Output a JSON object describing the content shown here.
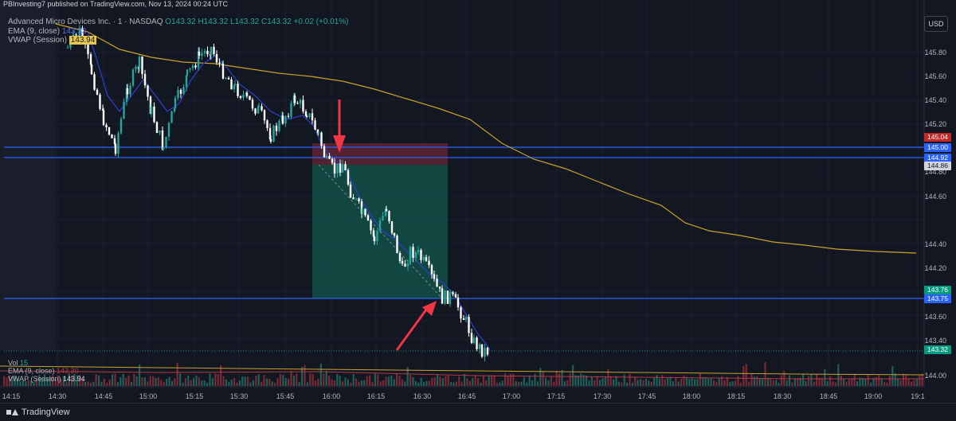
{
  "header": {
    "published": "PBInvesting7 published on TradingView.com, Nov 13, 2024 00:24 UTC"
  },
  "legend": {
    "symbol": "Advanced Micro Devices Inc. · 1 · NASDAQ",
    "o": "O143.32",
    "h": "H143.32",
    "l": "L143.32",
    "c": "C143.32",
    "chg": "+0.02 (+0.01%)",
    "ema_label": "EMA (9, close)",
    "ema_value": "143.33",
    "vwap_label": "VWAP (Session)",
    "vwap_value": "143.94"
  },
  "vol_legend": {
    "vol_label": "Vol",
    "vol_value": "15",
    "ema_label": "EMA (9, close)",
    "ema_value": "143.30",
    "vwap_label": "VWAP (Session)",
    "vwap_value": "143.94"
  },
  "currency_button": "USD",
  "price_axis": [
    "145.80",
    "145.60",
    "145.40",
    "145.20",
    "144.80",
    "144.60",
    "144.40",
    "144.20",
    "144.00",
    "143.60",
    "143.40"
  ],
  "vol_axis_label": "144.00",
  "price_tags": [
    {
      "text": "145.04",
      "color": "#c62828"
    },
    {
      "text": "145.00",
      "color": "#2962ff"
    },
    {
      "text": "144.92",
      "color": "#2962ff"
    },
    {
      "text": "144.86",
      "color": "#d1d4dc"
    },
    {
      "text": "143.76",
      "color": "#089981"
    },
    {
      "text": "143.75",
      "color": "#2962ff"
    },
    {
      "text": "143.32",
      "color": "#089981"
    }
  ],
  "time_axis": [
    "14:15",
    "14:30",
    "14:45",
    "15:00",
    "15:15",
    "15:30",
    "15:45",
    "16:00",
    "16:15",
    "16:30",
    "16:45",
    "17:00",
    "17:15",
    "17:30",
    "17:45",
    "18:00",
    "18:15",
    "18:30",
    "18:45",
    "19:00",
    "19:1"
  ],
  "footer": {
    "brand": "TradingView"
  },
  "colors": {
    "up": "#26a69a",
    "down": "#ffffff",
    "vwap": "#c9a227",
    "ema": "#2f3fd6",
    "hline": "#2962ff",
    "arrow": "#f23645"
  },
  "levels": {
    "resistance_upper": "145.00",
    "resistance_lower": "144.92",
    "support": "143.75"
  },
  "position": {
    "entry": "144.86",
    "stop": "145.04",
    "target": "143.76"
  }
}
